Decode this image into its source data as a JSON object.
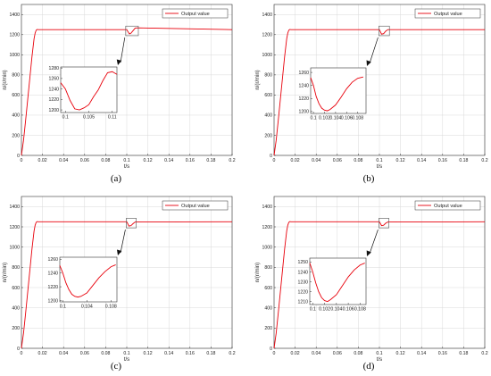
{
  "colors": {
    "series": "#e8000b",
    "grid": "#d9d9d9",
    "axis": "#333333"
  },
  "chart_data": [
    {
      "panel": "(a)",
      "panel_letter": "a",
      "type": "line",
      "xlabel": "t/s",
      "ylabel": "n/(r/min)",
      "xlim": [
        0,
        0.2
      ],
      "ylim": [
        0,
        1500
      ],
      "xticks": [
        "0",
        "0.02",
        "0.04",
        "0.06",
        "0.08",
        "0.1",
        "0.12",
        "0.14",
        "0.16",
        "0.18",
        "0.2"
      ],
      "yticks": [
        "0",
        "200",
        "400",
        "600",
        "800",
        "1000",
        "1200",
        "1400"
      ],
      "legend": "top-right",
      "grid": true,
      "series": [
        {
          "name": "Output value",
          "x": [
            0,
            0.002,
            0.004,
            0.006,
            0.008,
            0.01,
            0.012,
            0.013,
            0.014,
            0.015,
            0.016,
            0.02,
            0.1,
            0.101,
            0.1025,
            0.104,
            0.106,
            0.108,
            0.11,
            0.2
          ],
          "y": [
            0,
            150,
            350,
            560,
            770,
            980,
            1160,
            1215,
            1245,
            1252,
            1250,
            1250,
            1250,
            1232,
            1208,
            1215,
            1240,
            1265,
            1268,
            1250
          ]
        }
      ],
      "inset": {
        "xlim": [
          0.099,
          0.111
        ],
        "ylim": [
          1195,
          1282
        ],
        "xticks": [
          "0.1",
          "0.105",
          "0.11"
        ],
        "yticks": [
          "1200",
          "1220",
          "1240",
          "1260",
          "1280"
        ],
        "x": [
          0.099,
          0.1,
          0.101,
          0.102,
          0.103,
          0.104,
          0.105,
          0.106,
          0.107,
          0.108,
          0.109,
          0.11,
          0.111
        ],
        "y": [
          1252,
          1240,
          1218,
          1202,
          1200,
          1204,
          1210,
          1225,
          1238,
          1256,
          1271,
          1273,
          1268
        ]
      }
    },
    {
      "panel": "(b)",
      "panel_letter": "b",
      "type": "line",
      "xlabel": "t/s",
      "ylabel": "n/(r/min)",
      "xlim": [
        0,
        0.2
      ],
      "ylim": [
        0,
        1500
      ],
      "xticks": [
        "0",
        "0.02",
        "0.04",
        "0.06",
        "0.08",
        "0.1",
        "0.12",
        "0.14",
        "0.16",
        "0.18",
        "0.2"
      ],
      "yticks": [
        "0",
        "200",
        "400",
        "600",
        "800",
        "1000",
        "1200",
        "1400"
      ],
      "legend": "top-right",
      "grid": true,
      "series": [
        {
          "name": "Output value",
          "x": [
            0,
            0.002,
            0.004,
            0.006,
            0.008,
            0.01,
            0.012,
            0.013,
            0.014,
            0.015,
            0.016,
            0.02,
            0.1,
            0.101,
            0.102,
            0.104,
            0.106,
            0.108,
            0.2
          ],
          "y": [
            0,
            150,
            350,
            560,
            770,
            980,
            1160,
            1215,
            1245,
            1252,
            1250,
            1250,
            1250,
            1228,
            1205,
            1210,
            1235,
            1250,
            1250
          ]
        }
      ],
      "inset": {
        "xlim": [
          0.0995,
          0.1095
        ],
        "ylim": [
          1197,
          1267
        ],
        "xticks": [
          "0.1",
          "0.102",
          "0.104",
          "0.106",
          "0.108"
        ],
        "yticks": [
          "1200",
          "1220",
          "1240",
          "1260"
        ],
        "x": [
          0.0995,
          0.1,
          0.1005,
          0.101,
          0.1015,
          0.102,
          0.1025,
          0.103,
          0.104,
          0.105,
          0.106,
          0.107,
          0.108,
          0.109
        ],
        "y": [
          1252,
          1240,
          1223,
          1212,
          1205,
          1202,
          1201,
          1203,
          1210,
          1222,
          1235,
          1245,
          1251,
          1253
        ]
      }
    },
    {
      "panel": "(c)",
      "panel_letter": "c",
      "type": "line",
      "xlabel": "t/s",
      "ylabel": "n/(r/min)",
      "xlim": [
        0,
        0.2
      ],
      "ylim": [
        0,
        1500
      ],
      "xticks": [
        "0",
        "0.02",
        "0.04",
        "0.06",
        "0.08",
        "0.1",
        "0.12",
        "0.14",
        "0.16",
        "0.18",
        "0.2"
      ],
      "yticks": [
        "0",
        "200",
        "400",
        "600",
        "800",
        "1000",
        "1200",
        "1400"
      ],
      "legend": "top-right",
      "grid": true,
      "series": [
        {
          "name": "Output value",
          "x": [
            0,
            0.002,
            0.004,
            0.006,
            0.008,
            0.01,
            0.012,
            0.013,
            0.014,
            0.015,
            0.016,
            0.02,
            0.1,
            0.101,
            0.102,
            0.104,
            0.106,
            0.108,
            0.2
          ],
          "y": [
            0,
            150,
            350,
            560,
            770,
            980,
            1160,
            1215,
            1245,
            1252,
            1250,
            1250,
            1250,
            1230,
            1208,
            1212,
            1232,
            1248,
            1250
          ]
        }
      ],
      "inset": {
        "xlim": [
          0.0995,
          0.109
        ],
        "ylim": [
          1198,
          1263
        ],
        "xticks": [
          "0.1",
          "0.104",
          "0.108"
        ],
        "yticks": [
          "1200",
          "1220",
          "1240",
          "1260"
        ],
        "x": [
          0.0995,
          0.1,
          0.1005,
          0.101,
          0.1015,
          0.102,
          0.1025,
          0.103,
          0.104,
          0.105,
          0.106,
          0.107,
          0.108,
          0.1088
        ],
        "y": [
          1251,
          1240,
          1226,
          1216,
          1209,
          1206,
          1205,
          1206,
          1211,
          1222,
          1233,
          1242,
          1249,
          1252
        ]
      }
    },
    {
      "panel": "(d)",
      "panel_letter": "d",
      "type": "line",
      "xlabel": "t/s",
      "ylabel": "n/(r/min)",
      "xlim": [
        0,
        0.2
      ],
      "ylim": [
        0,
        1500
      ],
      "xticks": [
        "0",
        "0.02",
        "0.04",
        "0.06",
        "0.08",
        "0.1",
        "0.12",
        "0.14",
        "0.16",
        "0.18",
        "0.2"
      ],
      "yticks": [
        "0",
        "200",
        "400",
        "600",
        "800",
        "1000",
        "1200",
        "1400"
      ],
      "legend": "top-right",
      "grid": true,
      "series": [
        {
          "name": "Output value",
          "x": [
            0,
            0.002,
            0.004,
            0.006,
            0.008,
            0.01,
            0.012,
            0.013,
            0.014,
            0.015,
            0.016,
            0.02,
            0.1,
            0.101,
            0.102,
            0.104,
            0.106,
            0.108,
            0.2
          ],
          "y": [
            0,
            150,
            350,
            560,
            770,
            980,
            1160,
            1215,
            1245,
            1252,
            1250,
            1250,
            1250,
            1232,
            1212,
            1216,
            1236,
            1248,
            1250
          ]
        }
      ],
      "inset": {
        "xlim": [
          0.0995,
          0.109
        ],
        "ylim": [
          1207,
          1254
        ],
        "xticks": [
          "0.1",
          "0.102",
          "0.104",
          "0.106",
          "0.108"
        ],
        "yticks": [
          "1210",
          "1220",
          "1230",
          "1240",
          "1250"
        ],
        "x": [
          0.0995,
          0.1,
          0.1005,
          0.101,
          0.1015,
          0.102,
          0.1025,
          0.103,
          0.104,
          0.105,
          0.106,
          0.107,
          0.108,
          0.1088
        ],
        "y": [
          1249,
          1240,
          1229,
          1220,
          1214,
          1211,
          1210,
          1212,
          1217,
          1226,
          1235,
          1242,
          1247,
          1249
        ]
      }
    }
  ]
}
